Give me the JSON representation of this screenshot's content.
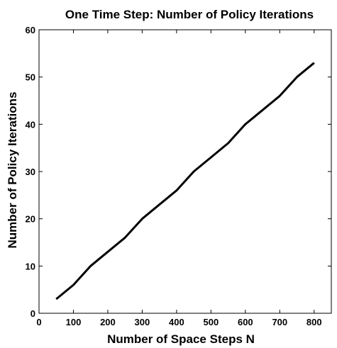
{
  "chart_data": {
    "type": "line",
    "title": "One Time Step: Number of Policy Iterations",
    "xlabel": "Number of Space Steps N",
    "ylabel": "Number of Policy Iterations",
    "xlim": [
      0,
      850
    ],
    "ylim": [
      0,
      60
    ],
    "xticks": [
      0,
      100,
      200,
      300,
      400,
      500,
      600,
      700,
      800
    ],
    "yticks": [
      0,
      10,
      20,
      30,
      40,
      50,
      60
    ],
    "grid": false,
    "legend": "none",
    "line_color": "#000000",
    "series": [
      {
        "x": [
          50,
          100,
          150,
          200,
          250,
          300,
          350,
          400,
          450,
          500,
          550,
          600,
          650,
          700,
          750,
          800
        ],
        "y": [
          3,
          6,
          10,
          13,
          16,
          20,
          23,
          26,
          30,
          33,
          36,
          40,
          43,
          46,
          50,
          53
        ]
      }
    ]
  }
}
